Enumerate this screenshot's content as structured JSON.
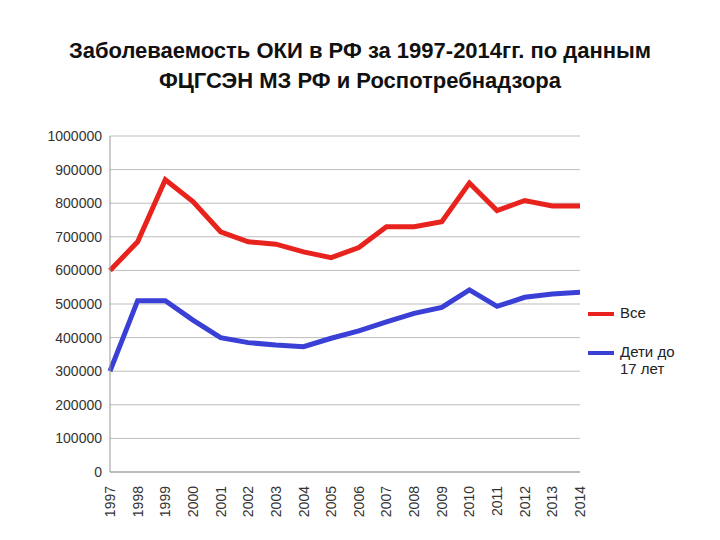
{
  "chart_data": {
    "type": "line",
    "title": "Заболеваемость ОКИ в РФ за 1997-2014гг. по данным ФЦГСЭН МЗ РФ и Роспотребнадзора",
    "categories": [
      "1997",
      "1998",
      "1999",
      "2000",
      "2001",
      "2002",
      "2003",
      "2004",
      "2005",
      "2006",
      "2007",
      "2008",
      "2009",
      "2010",
      "2011",
      "2012",
      "2013",
      "2014"
    ],
    "series": [
      {
        "name": "Все",
        "color": "#e8231e",
        "values": [
          600000,
          685000,
          870000,
          805000,
          715000,
          685000,
          678000,
          655000,
          638000,
          668000,
          730000,
          730000,
          745000,
          860000,
          778000,
          808000,
          792000,
          792000
        ]
      },
      {
        "name": "Дети до 17 лет",
        "color": "#3a3fd6",
        "values": [
          300000,
          510000,
          510000,
          452000,
          400000,
          385000,
          378000,
          373000,
          398000,
          420000,
          447000,
          472000,
          490000,
          542000,
          493000,
          520000,
          530000,
          535000
        ]
      }
    ],
    "ylim": [
      0,
      1000000
    ],
    "yticks": [
      0,
      100000,
      200000,
      300000,
      400000,
      500000,
      600000,
      700000,
      800000,
      900000,
      1000000
    ],
    "grid": true,
    "legend": "right"
  }
}
